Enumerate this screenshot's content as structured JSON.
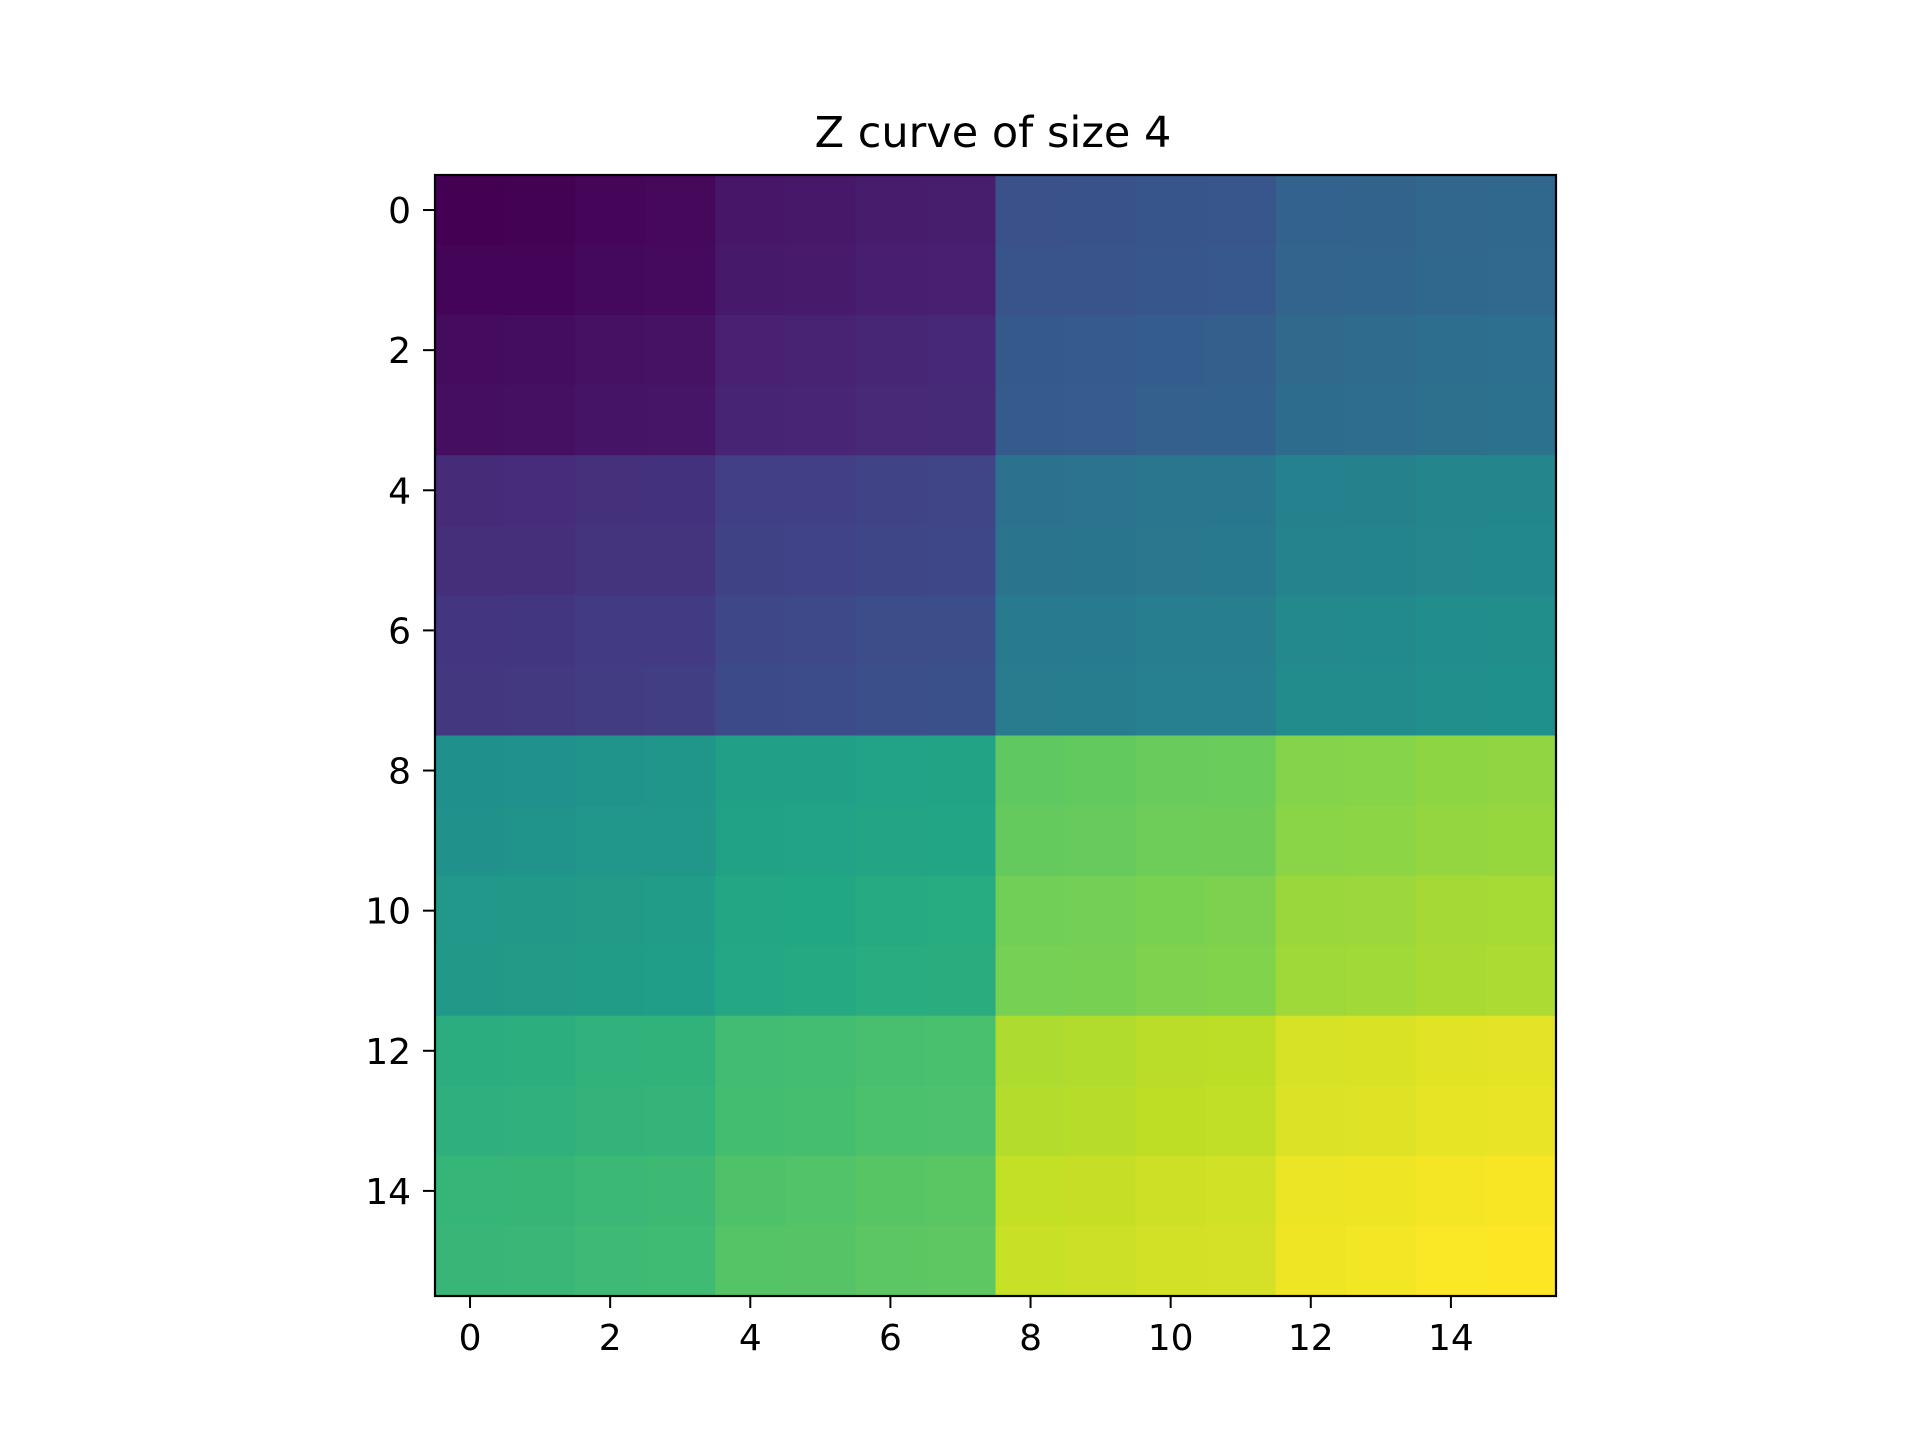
{
  "chart_data": {
    "type": "heatmap",
    "title": "Z curve of size 4",
    "xlabel": "",
    "ylabel": "",
    "rows": 16,
    "cols": 16,
    "colormap": "viridis",
    "vmin": 0,
    "vmax": 255,
    "value_rule": "z-order (Morton) index of each cell: bit-interleave of row (odd bits) and column (even bits)",
    "x_ticks": [
      "0",
      "2",
      "4",
      "6",
      "8",
      "10",
      "12",
      "14"
    ],
    "y_ticks": [
      "0",
      "2",
      "4",
      "6",
      "8",
      "10",
      "12",
      "14"
    ],
    "values": [
      [
        0,
        1,
        4,
        5,
        16,
        17,
        20,
        21,
        64,
        65,
        68,
        69,
        80,
        81,
        84,
        85
      ],
      [
        2,
        3,
        6,
        7,
        18,
        19,
        22,
        23,
        66,
        67,
        70,
        71,
        82,
        83,
        86,
        87
      ],
      [
        8,
        9,
        12,
        13,
        24,
        25,
        28,
        29,
        72,
        73,
        76,
        77,
        88,
        89,
        92,
        93
      ],
      [
        10,
        11,
        14,
        15,
        26,
        27,
        30,
        31,
        74,
        75,
        78,
        79,
        90,
        91,
        94,
        95
      ],
      [
        32,
        33,
        36,
        37,
        48,
        49,
        52,
        53,
        96,
        97,
        100,
        101,
        112,
        113,
        116,
        117
      ],
      [
        34,
        35,
        38,
        39,
        50,
        51,
        54,
        55,
        98,
        99,
        102,
        103,
        114,
        115,
        118,
        119
      ],
      [
        40,
        41,
        44,
        45,
        56,
        57,
        60,
        61,
        104,
        105,
        108,
        109,
        120,
        121,
        124,
        125
      ],
      [
        42,
        43,
        46,
        47,
        58,
        59,
        62,
        63,
        106,
        107,
        110,
        111,
        122,
        123,
        126,
        127
      ],
      [
        128,
        129,
        132,
        133,
        144,
        145,
        148,
        149,
        192,
        193,
        196,
        197,
        208,
        209,
        212,
        213
      ],
      [
        130,
        131,
        134,
        135,
        146,
        147,
        150,
        151,
        194,
        195,
        198,
        199,
        210,
        211,
        214,
        215
      ],
      [
        136,
        137,
        140,
        141,
        152,
        153,
        156,
        157,
        200,
        201,
        204,
        205,
        216,
        217,
        220,
        221
      ],
      [
        138,
        139,
        142,
        143,
        154,
        155,
        158,
        159,
        202,
        203,
        206,
        207,
        218,
        219,
        222,
        223
      ],
      [
        160,
        161,
        164,
        165,
        176,
        177,
        180,
        181,
        224,
        225,
        228,
        229,
        240,
        241,
        244,
        245
      ],
      [
        162,
        163,
        166,
        167,
        178,
        179,
        182,
        183,
        226,
        227,
        230,
        231,
        242,
        243,
        246,
        247
      ],
      [
        168,
        169,
        172,
        173,
        184,
        185,
        188,
        189,
        232,
        233,
        236,
        237,
        248,
        249,
        252,
        253
      ],
      [
        170,
        171,
        174,
        175,
        186,
        187,
        190,
        191,
        234,
        235,
        238,
        239,
        250,
        251,
        254,
        255
      ]
    ]
  }
}
